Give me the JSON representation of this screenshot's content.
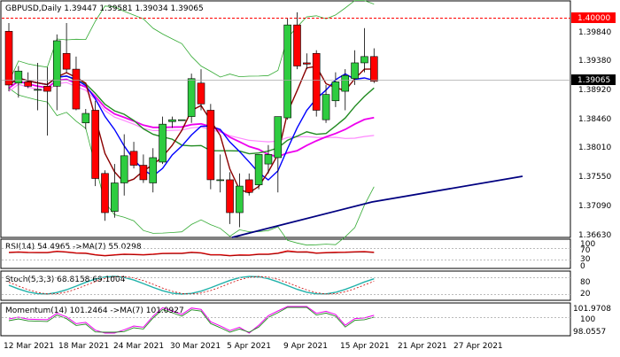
{
  "symbol_header": "GBPUSD,Daily  1.39447 1.39581 1.39034 1.39065",
  "price_axis": {
    "ticks": [
      "1.39840",
      "1.39380",
      "1.38920",
      "1.38460",
      "1.38010",
      "1.37550",
      "1.37090",
      "1.36630"
    ],
    "resistance_tag": "1.40000",
    "current_tag": "1.39065",
    "colors": {
      "resistance": "#ff0000",
      "current": "#000000"
    }
  },
  "date_axis": [
    "12 Mar 2021",
    "18 Mar 2021",
    "24 Mar 2021",
    "30 Mar 2021",
    "5 Apr 2021",
    "9 Apr 2021",
    "15 Apr 2021",
    "21 Apr 2021",
    "27 Apr 2021"
  ],
  "rsi": {
    "header": "RSI(14) 54.4965  ->MA(7) 55.0298",
    "ticks": [
      "100",
      "70",
      "30",
      "0"
    ]
  },
  "stoch": {
    "header": "Stoch(5,3,3) 68.8158 69.1004",
    "ticks": [
      "80",
      "20"
    ]
  },
  "momentum": {
    "header": "Momentum(14) 101.2464  ->MA(7) 101.0927",
    "ticks": [
      "101.9708",
      "100",
      "98.0557"
    ]
  },
  "colors": {
    "bull": "#2ecc40",
    "bear": "#ff0000",
    "ma_fast": "#8b0000",
    "ma_blue": "#0000ff",
    "ma_green": "#228b22",
    "ma_magenta": "#ee00ee",
    "ma_pink": "#ff88ff",
    "ma_navy": "#000080",
    "band": "#33aa33",
    "stoch_main": "#20b2aa",
    "stoch_signal": "#cc0000"
  },
  "chart_data": {
    "type": "candlestick",
    "candles": [
      {
        "o": 1.3985,
        "h": 1.3998,
        "l": 1.389,
        "c": 1.39
      },
      {
        "o": 1.3903,
        "h": 1.393,
        "l": 1.388,
        "c": 1.3922
      },
      {
        "o": 1.3905,
        "h": 1.392,
        "l": 1.3895,
        "c": 1.3898
      },
      {
        "o": 1.3893,
        "h": 1.3935,
        "l": 1.386,
        "c": 1.3893
      },
      {
        "o": 1.3898,
        "h": 1.3928,
        "l": 1.382,
        "c": 1.389
      },
      {
        "o": 1.3898,
        "h": 1.398,
        "l": 1.386,
        "c": 1.397
      },
      {
        "o": 1.395,
        "h": 1.3998,
        "l": 1.392,
        "c": 1.3925
      },
      {
        "o": 1.3925,
        "h": 1.3945,
        "l": 1.386,
        "c": 1.3862
      },
      {
        "o": 1.384,
        "h": 1.3862,
        "l": 1.383,
        "c": 1.3855
      },
      {
        "o": 1.386,
        "h": 1.3875,
        "l": 1.374,
        "c": 1.3752
      },
      {
        "o": 1.376,
        "h": 1.3765,
        "l": 1.3685,
        "c": 1.3698
      },
      {
        "o": 1.37,
        "h": 1.3775,
        "l": 1.369,
        "c": 1.3745
      },
      {
        "o": 1.3745,
        "h": 1.3822,
        "l": 1.3725,
        "c": 1.3788
      },
      {
        "o": 1.3795,
        "h": 1.381,
        "l": 1.3768,
        "c": 1.3773
      },
      {
        "o": 1.3773,
        "h": 1.379,
        "l": 1.3745,
        "c": 1.375
      },
      {
        "o": 1.3745,
        "h": 1.38,
        "l": 1.373,
        "c": 1.3785
      },
      {
        "o": 1.3778,
        "h": 1.385,
        "l": 1.3775,
        "c": 1.3838
      },
      {
        "o": 1.3842,
        "h": 1.385,
        "l": 1.3832,
        "c": 1.3845
      },
      {
        "o": 1.3845,
        "h": 1.3845,
        "l": 1.3845,
        "c": 1.3845
      },
      {
        "o": 1.385,
        "h": 1.3918,
        "l": 1.384,
        "c": 1.391
      },
      {
        "o": 1.3903,
        "h": 1.3925,
        "l": 1.386,
        "c": 1.387
      },
      {
        "o": 1.386,
        "h": 1.387,
        "l": 1.3735,
        "c": 1.375
      },
      {
        "o": 1.375,
        "h": 1.379,
        "l": 1.373,
        "c": 1.375
      },
      {
        "o": 1.375,
        "h": 1.3762,
        "l": 1.368,
        "c": 1.3698
      },
      {
        "o": 1.3698,
        "h": 1.376,
        "l": 1.3675,
        "c": 1.374
      },
      {
        "o": 1.375,
        "h": 1.376,
        "l": 1.3725,
        "c": 1.373
      },
      {
        "o": 1.3742,
        "h": 1.379,
        "l": 1.3735,
        "c": 1.379
      },
      {
        "o": 1.3775,
        "h": 1.3805,
        "l": 1.376,
        "c": 1.379
      },
      {
        "o": 1.3785,
        "h": 1.385,
        "l": 1.373,
        "c": 1.385
      },
      {
        "o": 1.3848,
        "h": 1.4005,
        "l": 1.3845,
        "c": 1.3995
      },
      {
        "o": 1.3995,
        "h": 1.4015,
        "l": 1.3925,
        "c": 1.393
      },
      {
        "o": 1.3935,
        "h": 1.395,
        "l": 1.3925,
        "c": 1.3933
      },
      {
        "o": 1.395,
        "h": 1.3955,
        "l": 1.385,
        "c": 1.386
      },
      {
        "o": 1.3845,
        "h": 1.39,
        "l": 1.384,
        "c": 1.3885
      },
      {
        "o": 1.3875,
        "h": 1.392,
        "l": 1.3865,
        "c": 1.3905
      },
      {
        "o": 1.389,
        "h": 1.3925,
        "l": 1.386,
        "c": 1.3915
      },
      {
        "o": 1.391,
        "h": 1.3955,
        "l": 1.39,
        "c": 1.3935
      },
      {
        "o": 1.3935,
        "h": 1.399,
        "l": 1.392,
        "c": 1.3945
      },
      {
        "o": 1.3945,
        "h": 1.3958,
        "l": 1.3903,
        "c": 1.3906
      }
    ]
  }
}
